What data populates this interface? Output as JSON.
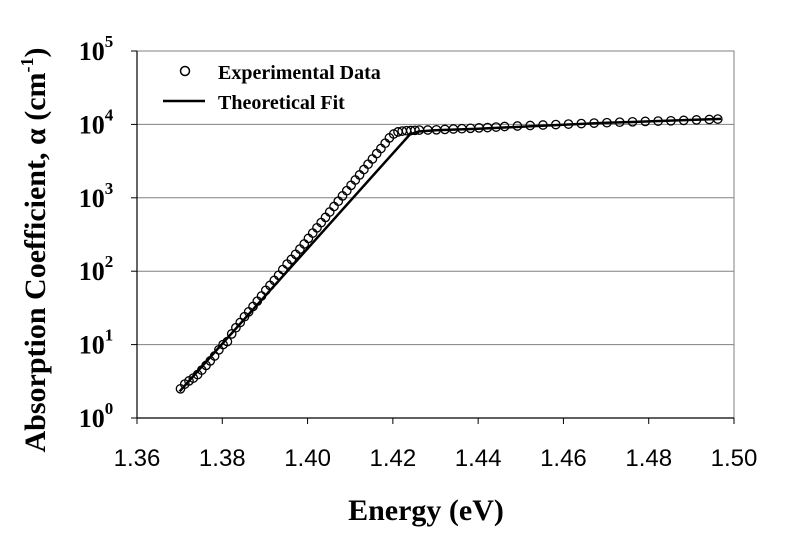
{
  "chart_data": {
    "type": "scatter",
    "title": "",
    "xlabel": "Energy (eV)",
    "ylabel": "Absorption Coefficient, α (cm",
    "ylabel_sup": "-1",
    "ylabel_close": ")",
    "xlim": [
      1.36,
      1.5
    ],
    "ylim": [
      1,
      100000
    ],
    "yscale": "log",
    "grid": "horizontal",
    "legend_position": "top-left",
    "x_ticks": [
      "1.36",
      "1.38",
      "1.40",
      "1.42",
      "1.44",
      "1.46",
      "1.48",
      "1.50"
    ],
    "x_tick_values": [
      1.36,
      1.38,
      1.4,
      1.42,
      1.44,
      1.46,
      1.48,
      1.5
    ],
    "y_ticks": [
      {
        "base": "10",
        "exp": "0",
        "value": 1
      },
      {
        "base": "10",
        "exp": "1",
        "value": 10
      },
      {
        "base": "10",
        "exp": "2",
        "value": 100
      },
      {
        "base": "10",
        "exp": "3",
        "value": 1000
      },
      {
        "base": "10",
        "exp": "4",
        "value": 10000
      },
      {
        "base": "10",
        "exp": "5",
        "value": 100000
      }
    ],
    "series": [
      {
        "name": "Experimental Data",
        "style": "markers",
        "x": [
          1.3702,
          1.3712,
          1.3722,
          1.3732,
          1.3742,
          1.3752,
          1.3762,
          1.3772,
          1.3782,
          1.3792,
          1.3802,
          1.3812,
          1.3822,
          1.3832,
          1.3842,
          1.3852,
          1.3862,
          1.3872,
          1.3882,
          1.3892,
          1.3902,
          1.3912,
          1.3922,
          1.3932,
          1.3942,
          1.3952,
          1.3962,
          1.3972,
          1.3982,
          1.3992,
          1.4002,
          1.4012,
          1.4022,
          1.4032,
          1.4042,
          1.4052,
          1.4062,
          1.4072,
          1.4082,
          1.4092,
          1.4102,
          1.4112,
          1.4122,
          1.4132,
          1.4142,
          1.4152,
          1.4162,
          1.4172,
          1.4182,
          1.4192,
          1.4202,
          1.4212,
          1.4222,
          1.4232,
          1.4242,
          1.4252,
          1.4262,
          1.4282,
          1.4302,
          1.4322,
          1.4342,
          1.4362,
          1.4382,
          1.4402,
          1.4422,
          1.4442,
          1.4462,
          1.4492,
          1.4522,
          1.4552,
          1.4582,
          1.4612,
          1.4642,
          1.4672,
          1.4702,
          1.4732,
          1.4762,
          1.4792,
          1.4822,
          1.4852,
          1.4882,
          1.4912,
          1.4942,
          1.4962
        ],
        "y": [
          2.5,
          2.9,
          3.2,
          3.5,
          3.9,
          4.5,
          5.2,
          6.0,
          7.0,
          8.5,
          10.0,
          11.0,
          14,
          17,
          20,
          24,
          28,
          33,
          39,
          46,
          55,
          64,
          75,
          88,
          105,
          125,
          145,
          170,
          200,
          235,
          280,
          330,
          390,
          460,
          540,
          640,
          760,
          900,
          1060,
          1250,
          1480,
          1750,
          2050,
          2430,
          2870,
          3380,
          4000,
          4700,
          5550,
          6550,
          7400,
          7900,
          8100,
          8200,
          8250,
          8300,
          8350,
          8400,
          8450,
          8550,
          8650,
          8750,
          8850,
          8950,
          9050,
          9200,
          9350,
          9500,
          9650,
          9800,
          9950,
          10100,
          10250,
          10400,
          10550,
          10700,
          10850,
          11000,
          11100,
          11200,
          11350,
          11500,
          11650,
          11800
        ]
      },
      {
        "name": "Theoretical Fit",
        "style": "line",
        "x": [
          1.37,
          1.424,
          1.426,
          1.43,
          1.44,
          1.45,
          1.46,
          1.47,
          1.48,
          1.49,
          1.497
        ],
        "y": [
          2.3,
          7300,
          8000,
          8300,
          8700,
          9300,
          9900,
          10500,
          11000,
          11500,
          11900
        ]
      }
    ]
  }
}
